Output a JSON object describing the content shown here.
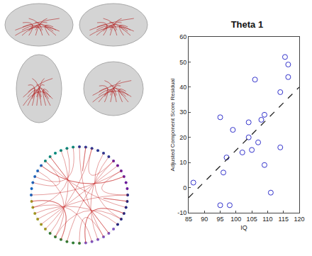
{
  "chart_data": {
    "type": "scatter",
    "title": "Theta 1",
    "x_label": "IQ",
    "y_label": "Adjusted Component Score Residual",
    "xlim": [
      85,
      120
    ],
    "xticks": [
      85,
      90,
      95,
      100,
      105,
      110,
      115,
      120
    ],
    "ylim": [
      -10,
      60
    ],
    "yticks": [
      -10,
      0,
      10,
      20,
      30,
      40,
      50,
      60
    ],
    "grid": false,
    "series": [
      {
        "type": "scatter",
        "marker": "circle-open",
        "color": "#3333cc",
        "x": [
          86.5,
          95,
          95,
          96,
          97,
          98,
          99,
          102,
          104,
          104,
          105,
          106,
          107,
          108,
          109,
          109,
          111,
          114,
          114,
          115.5,
          116.5,
          116.5
        ],
        "values": [
          2,
          28,
          -7,
          6,
          12,
          -7,
          23,
          14,
          20,
          26,
          15,
          43,
          18,
          27,
          9,
          29,
          -2,
          16,
          38,
          52,
          49,
          44
        ]
      },
      {
        "type": "line",
        "line_style": "dash",
        "color": "#222222",
        "x": [
          85,
          120
        ],
        "values": [
          -4,
          40
        ]
      }
    ]
  }
}
